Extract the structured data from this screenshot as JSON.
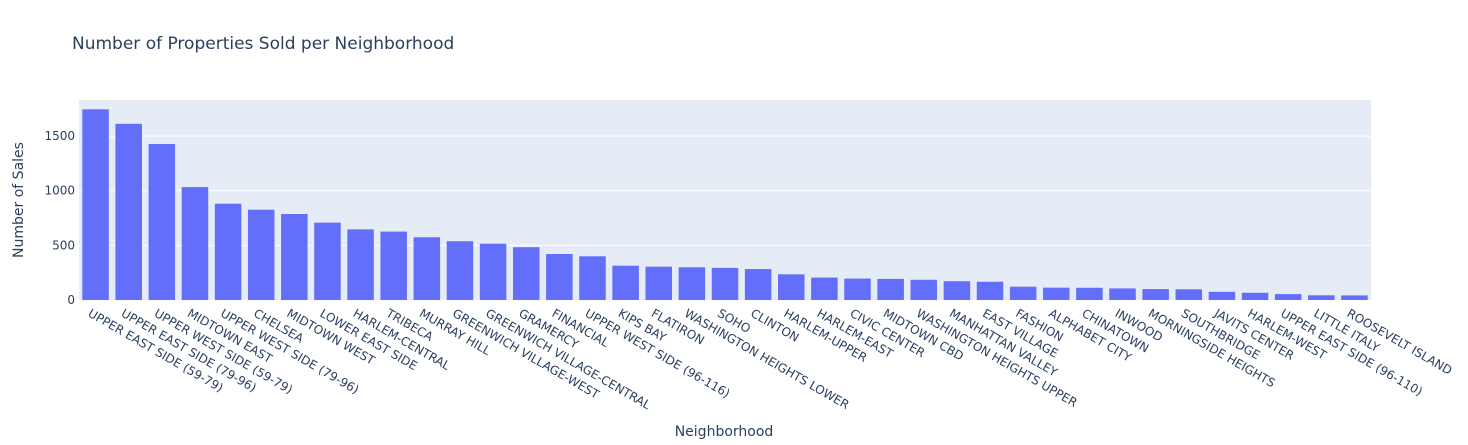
{
  "chart_data": {
    "type": "bar",
    "title": "Number of Properties Sold per Neighborhood",
    "xlabel": "Neighborhood",
    "ylabel": "Number of Sales",
    "ylim": [
      0,
      1830
    ],
    "yticks": [
      0,
      500,
      1000,
      1500
    ],
    "grid": true,
    "colors": {
      "bar": "#636efa",
      "plot_bg": "#e5ecf6",
      "text": "#2a3f5f"
    },
    "categories": [
      "UPPER EAST SIDE (59-79)",
      "UPPER EAST SIDE (79-96)",
      "UPPER WEST SIDE (59-79)",
      "MIDTOWN EAST",
      "UPPER WEST SIDE (79-96)",
      "CHELSEA",
      "MIDTOWN WEST",
      "LOWER EAST SIDE",
      "HARLEM-CENTRAL",
      "TRIBECA",
      "MURRAY HILL",
      "GREENWICH VILLAGE-WEST",
      "GREENWICH VILLAGE-CENTRAL",
      "GRAMERCY",
      "FINANCIAL",
      "UPPER WEST SIDE (96-116)",
      "KIPS BAY",
      "FLATIRON",
      "WASHINGTON HEIGHTS LOWER",
      "SOHO",
      "CLINTON",
      "HARLEM-UPPER",
      "HARLEM-EAST",
      "CIVIC CENTER",
      "MIDTOWN CBD",
      "WASHINGTON HEIGHTS UPPER",
      "MANHATTAN VALLEY",
      "EAST VILLAGE",
      "FASHION",
      "ALPHABET CITY",
      "CHINATOWN",
      "INWOOD",
      "MORNINGSIDE HEIGHTS",
      "SOUTHBRIDGE",
      "JAVITS CENTER",
      "HARLEM-WEST",
      "UPPER EAST SIDE (96-110)",
      "LITTLE ITALY",
      "ROOSEVELT ISLAND"
    ],
    "values": [
      1745,
      1612,
      1427,
      1033,
      881,
      826,
      787,
      708,
      646,
      626,
      574,
      538,
      515,
      483,
      421,
      400,
      314,
      305,
      299,
      294,
      283,
      235,
      205,
      196,
      193,
      185,
      172,
      167,
      122,
      113,
      112,
      106,
      100,
      98,
      75,
      66,
      54,
      43,
      42
    ]
  }
}
